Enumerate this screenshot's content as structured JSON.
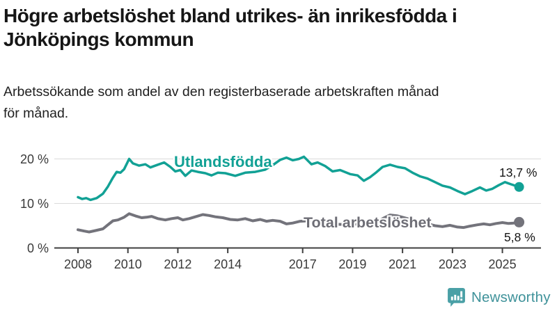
{
  "header": {
    "title_line1": "Högre arbetslöshet bland utrikes- än inrikesfödda i",
    "title_line2": "Jönköpings kommun",
    "subtitle_line1": "Arbetssökande som andel av den registerbaserade arbetskraften månad",
    "subtitle_line2": "för månad."
  },
  "chart_data": {
    "type": "line",
    "title": "Högre arbetslöshet bland utrikes- än inrikesfödda i Jönköpings kommun",
    "subtitle": "Arbetssökande som andel av den registerbaserade arbetskraften månad för månad.",
    "x_unit": "decimal_year",
    "y_unit": "percent",
    "grid": "horizontal",
    "x_range": [
      2008.0,
      2025.67
    ],
    "y_range": [
      0,
      20
    ],
    "x_ticks": [
      {
        "value": 2008,
        "label": "2008"
      },
      {
        "value": 2010,
        "label": "2010"
      },
      {
        "value": 2012,
        "label": "2012"
      },
      {
        "value": 2014,
        "label": "2014"
      },
      {
        "value": 2017,
        "label": "2017"
      },
      {
        "value": 2019,
        "label": "2019"
      },
      {
        "value": 2021,
        "label": "2021"
      },
      {
        "value": 2023,
        "label": "2023"
      },
      {
        "value": 2025,
        "label": "2025"
      }
    ],
    "y_ticks": [
      {
        "value": 0,
        "label": "0 %"
      },
      {
        "value": 10,
        "label": "10 %"
      },
      {
        "value": 20,
        "label": "20 %"
      }
    ],
    "series": [
      {
        "name": "Utlandsfödda",
        "color": "#12A195",
        "line_width": 3.5,
        "end_dot_radius": 7,
        "end_value": 13.7,
        "end_label": "13,7 %",
        "points": [
          [
            2008.0,
            11.4
          ],
          [
            2008.17,
            11.0
          ],
          [
            2008.33,
            11.2
          ],
          [
            2008.5,
            10.8
          ],
          [
            2008.75,
            11.2
          ],
          [
            2009.0,
            12.2
          ],
          [
            2009.2,
            13.8
          ],
          [
            2009.4,
            15.8
          ],
          [
            2009.55,
            17.1
          ],
          [
            2009.7,
            16.9
          ],
          [
            2009.85,
            17.7
          ],
          [
            2010.05,
            20.0
          ],
          [
            2010.2,
            19.0
          ],
          [
            2010.45,
            18.5
          ],
          [
            2010.7,
            18.8
          ],
          [
            2010.9,
            18.1
          ],
          [
            2011.2,
            18.7
          ],
          [
            2011.45,
            19.2
          ],
          [
            2011.7,
            18.2
          ],
          [
            2011.9,
            17.2
          ],
          [
            2012.1,
            17.5
          ],
          [
            2012.3,
            16.2
          ],
          [
            2012.55,
            17.4
          ],
          [
            2012.8,
            17.1
          ],
          [
            2013.1,
            16.8
          ],
          [
            2013.35,
            16.3
          ],
          [
            2013.6,
            16.9
          ],
          [
            2013.9,
            16.8
          ],
          [
            2014.3,
            16.2
          ],
          [
            2014.7,
            16.9
          ],
          [
            2015.1,
            17.1
          ],
          [
            2015.5,
            17.6
          ],
          [
            2015.85,
            18.8
          ],
          [
            2016.1,
            19.8
          ],
          [
            2016.35,
            20.3
          ],
          [
            2016.6,
            19.7
          ],
          [
            2016.85,
            20.0
          ],
          [
            2017.05,
            20.5
          ],
          [
            2017.35,
            18.8
          ],
          [
            2017.6,
            19.2
          ],
          [
            2017.9,
            18.4
          ],
          [
            2018.2,
            17.2
          ],
          [
            2018.5,
            17.5
          ],
          [
            2018.9,
            16.6
          ],
          [
            2019.2,
            16.3
          ],
          [
            2019.45,
            15.1
          ],
          [
            2019.7,
            15.9
          ],
          [
            2019.95,
            17.0
          ],
          [
            2020.2,
            18.2
          ],
          [
            2020.5,
            18.7
          ],
          [
            2020.8,
            18.2
          ],
          [
            2021.1,
            17.9
          ],
          [
            2021.4,
            16.9
          ],
          [
            2021.7,
            16.1
          ],
          [
            2022.0,
            15.6
          ],
          [
            2022.3,
            14.8
          ],
          [
            2022.6,
            14.0
          ],
          [
            2022.9,
            13.6
          ],
          [
            2023.2,
            12.8
          ],
          [
            2023.5,
            12.1
          ],
          [
            2023.8,
            12.8
          ],
          [
            2024.1,
            13.6
          ],
          [
            2024.35,
            12.9
          ],
          [
            2024.6,
            13.3
          ],
          [
            2024.85,
            14.1
          ],
          [
            2025.1,
            14.8
          ],
          [
            2025.35,
            14.3
          ],
          [
            2025.67,
            13.7
          ]
        ]
      },
      {
        "name": "Total arbetslöshet",
        "color": "#73737B",
        "line_width": 4,
        "end_dot_radius": 7.5,
        "end_value": 5.8,
        "end_label": "5,8 %",
        "points": [
          [
            2008.0,
            4.1
          ],
          [
            2008.25,
            3.8
          ],
          [
            2008.45,
            3.6
          ],
          [
            2008.7,
            3.9
          ],
          [
            2009.0,
            4.3
          ],
          [
            2009.2,
            5.2
          ],
          [
            2009.4,
            6.1
          ],
          [
            2009.6,
            6.3
          ],
          [
            2009.85,
            6.9
          ],
          [
            2010.05,
            7.7
          ],
          [
            2010.3,
            7.2
          ],
          [
            2010.55,
            6.8
          ],
          [
            2010.75,
            6.9
          ],
          [
            2010.95,
            7.1
          ],
          [
            2011.2,
            6.6
          ],
          [
            2011.5,
            6.3
          ],
          [
            2011.75,
            6.6
          ],
          [
            2012.0,
            6.8
          ],
          [
            2012.2,
            6.3
          ],
          [
            2012.45,
            6.6
          ],
          [
            2012.7,
            7.0
          ],
          [
            2013.0,
            7.5
          ],
          [
            2013.25,
            7.3
          ],
          [
            2013.5,
            7.0
          ],
          [
            2013.8,
            6.8
          ],
          [
            2014.1,
            6.4
          ],
          [
            2014.4,
            6.3
          ],
          [
            2014.7,
            6.6
          ],
          [
            2015.0,
            6.1
          ],
          [
            2015.3,
            6.4
          ],
          [
            2015.55,
            6.0
          ],
          [
            2015.8,
            6.2
          ],
          [
            2016.1,
            6.0
          ],
          [
            2016.35,
            5.4
          ],
          [
            2016.6,
            5.6
          ],
          [
            2016.9,
            6.0
          ],
          [
            2017.2,
            6.1
          ],
          [
            2017.6,
            5.8
          ],
          [
            2018.0,
            5.5
          ],
          [
            2018.5,
            5.3
          ],
          [
            2019.0,
            5.4
          ],
          [
            2019.5,
            5.2
          ],
          [
            2019.9,
            5.6
          ],
          [
            2020.2,
            6.6
          ],
          [
            2020.5,
            7.4
          ],
          [
            2020.8,
            7.2
          ],
          [
            2021.2,
            6.6
          ],
          [
            2021.6,
            6.0
          ],
          [
            2022.0,
            5.4
          ],
          [
            2022.3,
            5.0
          ],
          [
            2022.6,
            4.8
          ],
          [
            2022.9,
            5.1
          ],
          [
            2023.2,
            4.7
          ],
          [
            2023.45,
            4.6
          ],
          [
            2023.7,
            4.9
          ],
          [
            2024.0,
            5.2
          ],
          [
            2024.25,
            5.4
          ],
          [
            2024.5,
            5.2
          ],
          [
            2024.75,
            5.5
          ],
          [
            2025.0,
            5.7
          ],
          [
            2025.25,
            5.5
          ],
          [
            2025.45,
            5.6
          ],
          [
            2025.67,
            5.8
          ]
        ]
      }
    ]
  },
  "footer": {
    "brand": "Newsworthy",
    "brand_color": "#3F929A",
    "icon": "newsworthy-chart-bubble-icon",
    "icon_color": "#4AA0A6"
  }
}
